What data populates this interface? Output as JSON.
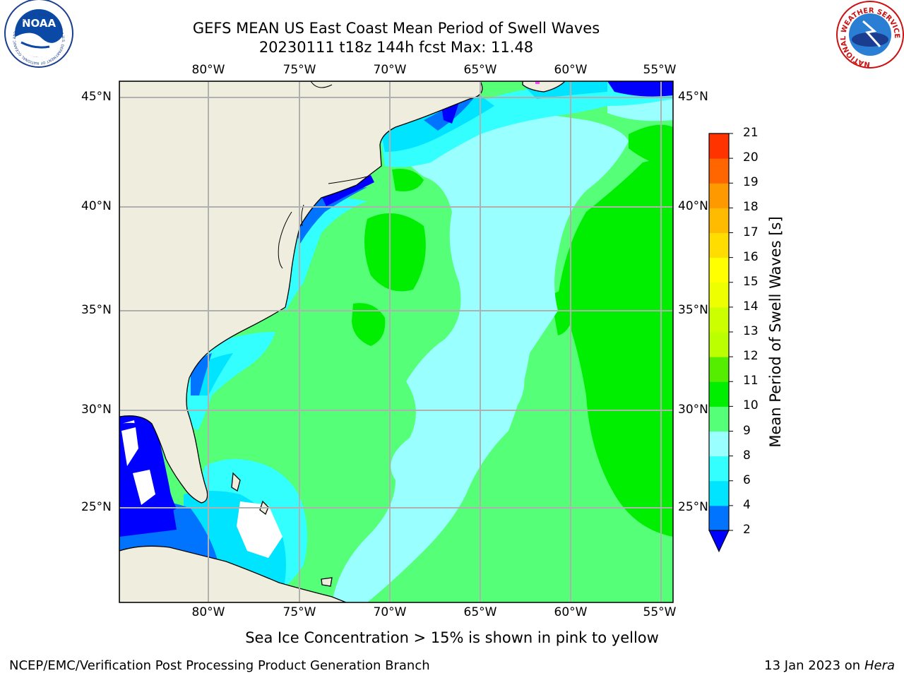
{
  "header": {
    "title_line1": "GEFS MEAN US East Coast Mean Period of Swell Waves",
    "title_line2": "20230111 t18z 144h fcst   Max: 11.48"
  },
  "logos": {
    "noaa_center_text": "NOAA",
    "noaa_ring_text": "NATIONAL OCEANIC AND ATMOSPHERIC ADMINISTRATION • U.S. DEPARTMENT OF COMMERCE",
    "nws_ring_text": "NATIONAL WEATHER SERVICE"
  },
  "map": {
    "lon_labels": [
      "80°W",
      "75°W",
      "70°W",
      "65°W",
      "60°W",
      "55°W"
    ],
    "lat_labels": [
      "45°N",
      "40°N",
      "35°N",
      "30°N",
      "25°N"
    ],
    "ocean_color": "#55ff77",
    "land_color": "#efedde"
  },
  "colorbar": {
    "title": "Mean Period of Swell Waves [s]",
    "ticks": [
      "2",
      "4",
      "6",
      "8",
      "9",
      "10",
      "11",
      "12",
      "13",
      "14",
      "15",
      "16",
      "17",
      "18",
      "19",
      "20",
      "21"
    ],
    "colors": [
      "#0073ff",
      "#00e4ff",
      "#33ffff",
      "#99ffff",
      "#55ff77",
      "#00ee00",
      "#55ee00",
      "#bbff00",
      "#ccff00",
      "#eeff00",
      "#ffff00",
      "#ffdd00",
      "#ffbb00",
      "#ff9900",
      "#ff6600",
      "#ff3300",
      "#ff0000"
    ],
    "extend_color": "#0000ff"
  },
  "footer": {
    "note": "Sea Ice Concentration > 15% is shown in pink to yellow",
    "left": "NCEP/EMC/Verification Post Processing Product Generation Branch",
    "right_date": "13 Jan 2023 on ",
    "right_host": "Hera"
  }
}
